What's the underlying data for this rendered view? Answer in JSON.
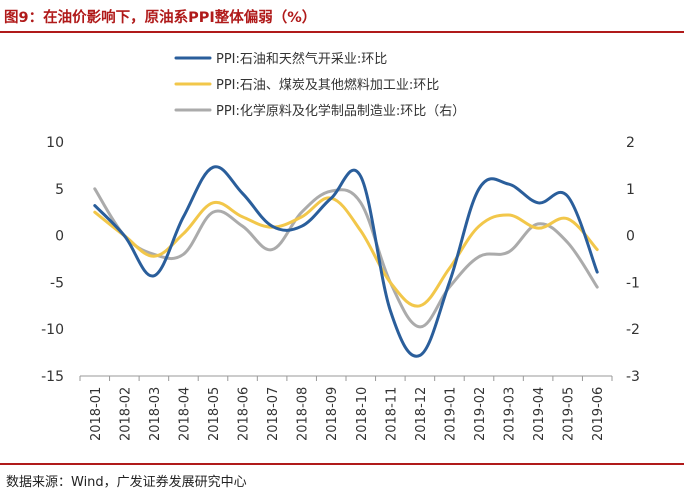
{
  "header": {
    "title": "图9：在油价影响下，原油系PPI整体偏弱（%）"
  },
  "footer": {
    "source": "数据来源：Wind，广发证券发展研究中心"
  },
  "colors": {
    "brand": "#b01a1a",
    "series_blue": "#2a5e9b",
    "series_yellow": "#f2c74a",
    "series_gray": "#ababab"
  },
  "chart_data": {
    "type": "line",
    "categories": [
      "2018-01",
      "2018-02",
      "2018-03",
      "2018-04",
      "2018-05",
      "2018-06",
      "2018-07",
      "2018-08",
      "2018-09",
      "2018-10",
      "2018-11",
      "2018-12",
      "2019-01",
      "2019-02",
      "2019-03",
      "2019-04",
      "2019-05",
      "2019-06"
    ],
    "y_left": {
      "ylim": [
        -15,
        10
      ],
      "ticks": [
        10,
        5,
        0,
        -5,
        -10,
        -15
      ]
    },
    "y_right": {
      "ylim": [
        -3,
        2
      ],
      "ticks": [
        2,
        1,
        0,
        -1,
        -2,
        -3
      ]
    },
    "grid": false,
    "legend_position": "top",
    "series": [
      {
        "name": "PPI:石油和天然气开采业:环比",
        "axis": "left",
        "color": "#2a5e9b",
        "values": [
          3.2,
          0.0,
          -4.3,
          2.0,
          7.3,
          4.5,
          1.0,
          1.0,
          4.0,
          6.3,
          -8.0,
          -12.8,
          -5.0,
          5.0,
          5.5,
          3.5,
          4.2,
          -3.9
        ]
      },
      {
        "name": "PPI:石油、煤炭及其他燃料加工业:环比",
        "axis": "left",
        "color": "#f2c74a",
        "values": [
          2.5,
          0.0,
          -2.2,
          0.2,
          3.5,
          2.0,
          0.9,
          2.0,
          4.0,
          0.5,
          -5.0,
          -7.5,
          -3.5,
          1.0,
          2.2,
          0.8,
          1.8,
          -1.5
        ]
      },
      {
        "name": "PPI:化学原料及化学制品制造业:环比（右）",
        "axis": "right",
        "color": "#ababab",
        "values": [
          1.0,
          0.0,
          -0.4,
          -0.4,
          0.5,
          0.2,
          -0.3,
          0.5,
          0.95,
          0.7,
          -1.0,
          -1.95,
          -1.1,
          -0.45,
          -0.35,
          0.25,
          -0.15,
          -1.1
        ]
      }
    ]
  }
}
